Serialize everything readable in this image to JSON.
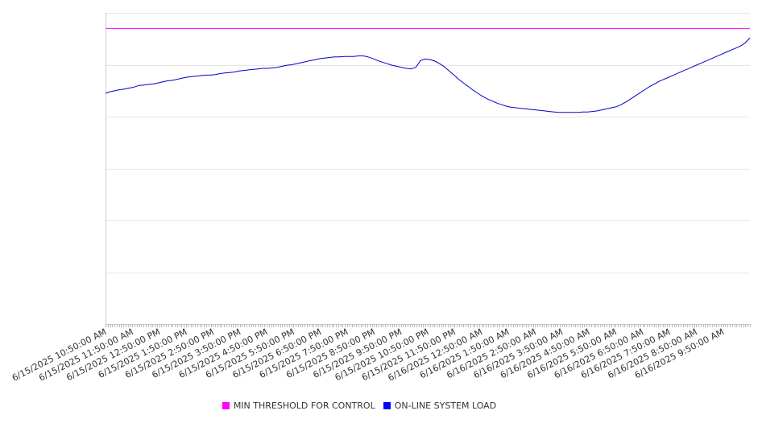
{
  "chart_data": {
    "type": "line",
    "title": "",
    "xlabel": "",
    "ylabel": "",
    "x_start": "6/15/2025 10:50:00 AM",
    "x_end": "6/16/2025 10:50:00 AM",
    "x_step_minutes": 5,
    "x_tick_labels": [
      "6/15/2025 10:50:00 AM",
      "6/15/2025 11:50:00 AM",
      "6/15/2025 12:50:00 PM",
      "6/15/2025 1:50:00 PM",
      "6/15/2025 2:50:00 PM",
      "6/15/2025 3:50:00 PM",
      "6/15/2025 4:50:00 PM",
      "6/15/2025 5:50:00 PM",
      "6/15/2025 6:50:00 PM",
      "6/15/2025 7:50:00 PM",
      "6/15/2025 8:50:00 PM",
      "6/15/2025 9:50:00 PM",
      "6/15/2025 10:50:00 PM",
      "6/15/2025 11:50:00 PM",
      "6/16/2025 12:50:00 AM",
      "6/16/2025 1:50:00 AM",
      "6/16/2025 2:50:00 AM",
      "6/16/2025 3:50:00 AM",
      "6/16/2025 4:50:00 AM",
      "6/16/2025 5:50:00 AM",
      "6/16/2025 6:50:00 AM",
      "6/16/2025 7:50:00 AM",
      "6/16/2025 8:50:00 AM",
      "6/16/2025 9:50:00 AM"
    ],
    "y_scale": {
      "min": 0,
      "max": 6,
      "gridlines": [
        1,
        2,
        3,
        4,
        5,
        6
      ],
      "tick_labels_visible": false
    },
    "grid": true,
    "legend_position": "bottom-center",
    "series": [
      {
        "name": "MIN THRESHOLD FOR CONTROL",
        "color": "#ff00ff",
        "values": [
          5.7
        ]
      },
      {
        "name": "ON-LINE SYSTEM LOAD",
        "color": "#0000cc",
        "values": [
          4.45,
          4.48,
          4.5,
          4.52,
          4.53,
          4.55,
          4.57,
          4.6,
          4.61,
          4.62,
          4.63,
          4.65,
          4.67,
          4.69,
          4.7,
          4.72,
          4.74,
          4.76,
          4.77,
          4.78,
          4.79,
          4.8,
          4.8,
          4.81,
          4.83,
          4.84,
          4.85,
          4.86,
          4.88,
          4.89,
          4.9,
          4.91,
          4.92,
          4.93,
          4.93,
          4.94,
          4.95,
          4.97,
          4.99,
          5.0,
          5.02,
          5.04,
          5.06,
          5.08,
          5.1,
          5.12,
          5.13,
          5.14,
          5.15,
          5.15,
          5.16,
          5.16,
          5.16,
          5.17,
          5.17,
          5.15,
          5.12,
          5.08,
          5.05,
          5.02,
          4.99,
          4.97,
          4.95,
          4.93,
          4.92,
          4.95,
          5.08,
          5.11,
          5.1,
          5.07,
          5.02,
          4.96,
          4.88,
          4.8,
          4.72,
          4.65,
          4.58,
          4.51,
          4.45,
          4.39,
          4.34,
          4.3,
          4.26,
          4.23,
          4.2,
          4.18,
          4.17,
          4.16,
          4.15,
          4.14,
          4.13,
          4.12,
          4.11,
          4.1,
          4.09,
          4.08,
          4.08,
          4.08,
          4.08,
          4.08,
          4.09,
          4.09,
          4.1,
          4.11,
          4.13,
          4.15,
          4.17,
          4.19,
          4.23,
          4.28,
          4.34,
          4.4,
          4.46,
          4.52,
          4.58,
          4.63,
          4.68,
          4.72,
          4.76,
          4.8,
          4.84,
          4.88,
          4.92,
          4.96,
          5.0,
          5.04,
          5.08,
          5.12,
          5.16,
          5.2,
          5.24,
          5.28,
          5.32,
          5.36,
          5.42,
          5.52
        ]
      }
    ]
  },
  "legend": {
    "items": [
      {
        "label": "MIN THRESHOLD FOR CONTROL",
        "color": "#ff00ff"
      },
      {
        "label": "ON-LINE SYSTEM LOAD",
        "color": "#0000ff"
      }
    ]
  }
}
